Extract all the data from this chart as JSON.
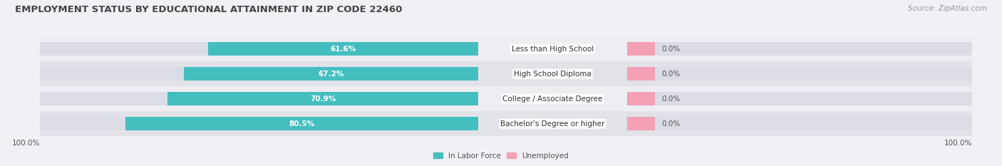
{
  "title": "EMPLOYMENT STATUS BY EDUCATIONAL ATTAINMENT IN ZIP CODE 22460",
  "source": "Source: ZipAtlas.com",
  "categories": [
    "Less than High School",
    "High School Diploma",
    "College / Associate Degree",
    "Bachelor's Degree or higher"
  ],
  "labor_force_pct": [
    61.6,
    67.2,
    70.9,
    80.5
  ],
  "unemployed_pct": [
    0.0,
    0.0,
    0.0,
    0.0
  ],
  "labor_force_color": "#45BEC0",
  "unemployed_color": "#F4A0B5",
  "row_bg_even": "#EDEDF2",
  "row_bg_odd": "#E2E2E9",
  "bg_color": "#F0F0F5",
  "bar_track_color": "#DCDCE6",
  "title_fontsize": 9.5,
  "source_fontsize": 7.5,
  "label_fontsize": 7.5,
  "cat_fontsize": 7.5,
  "legend_fontsize": 7.5,
  "axis_label_fontsize": 7.5,
  "left_label": "100.0%",
  "right_label": "100.0%",
  "max_val": 100.0,
  "unemp_display_min": 8.0,
  "bar_height": 0.55
}
